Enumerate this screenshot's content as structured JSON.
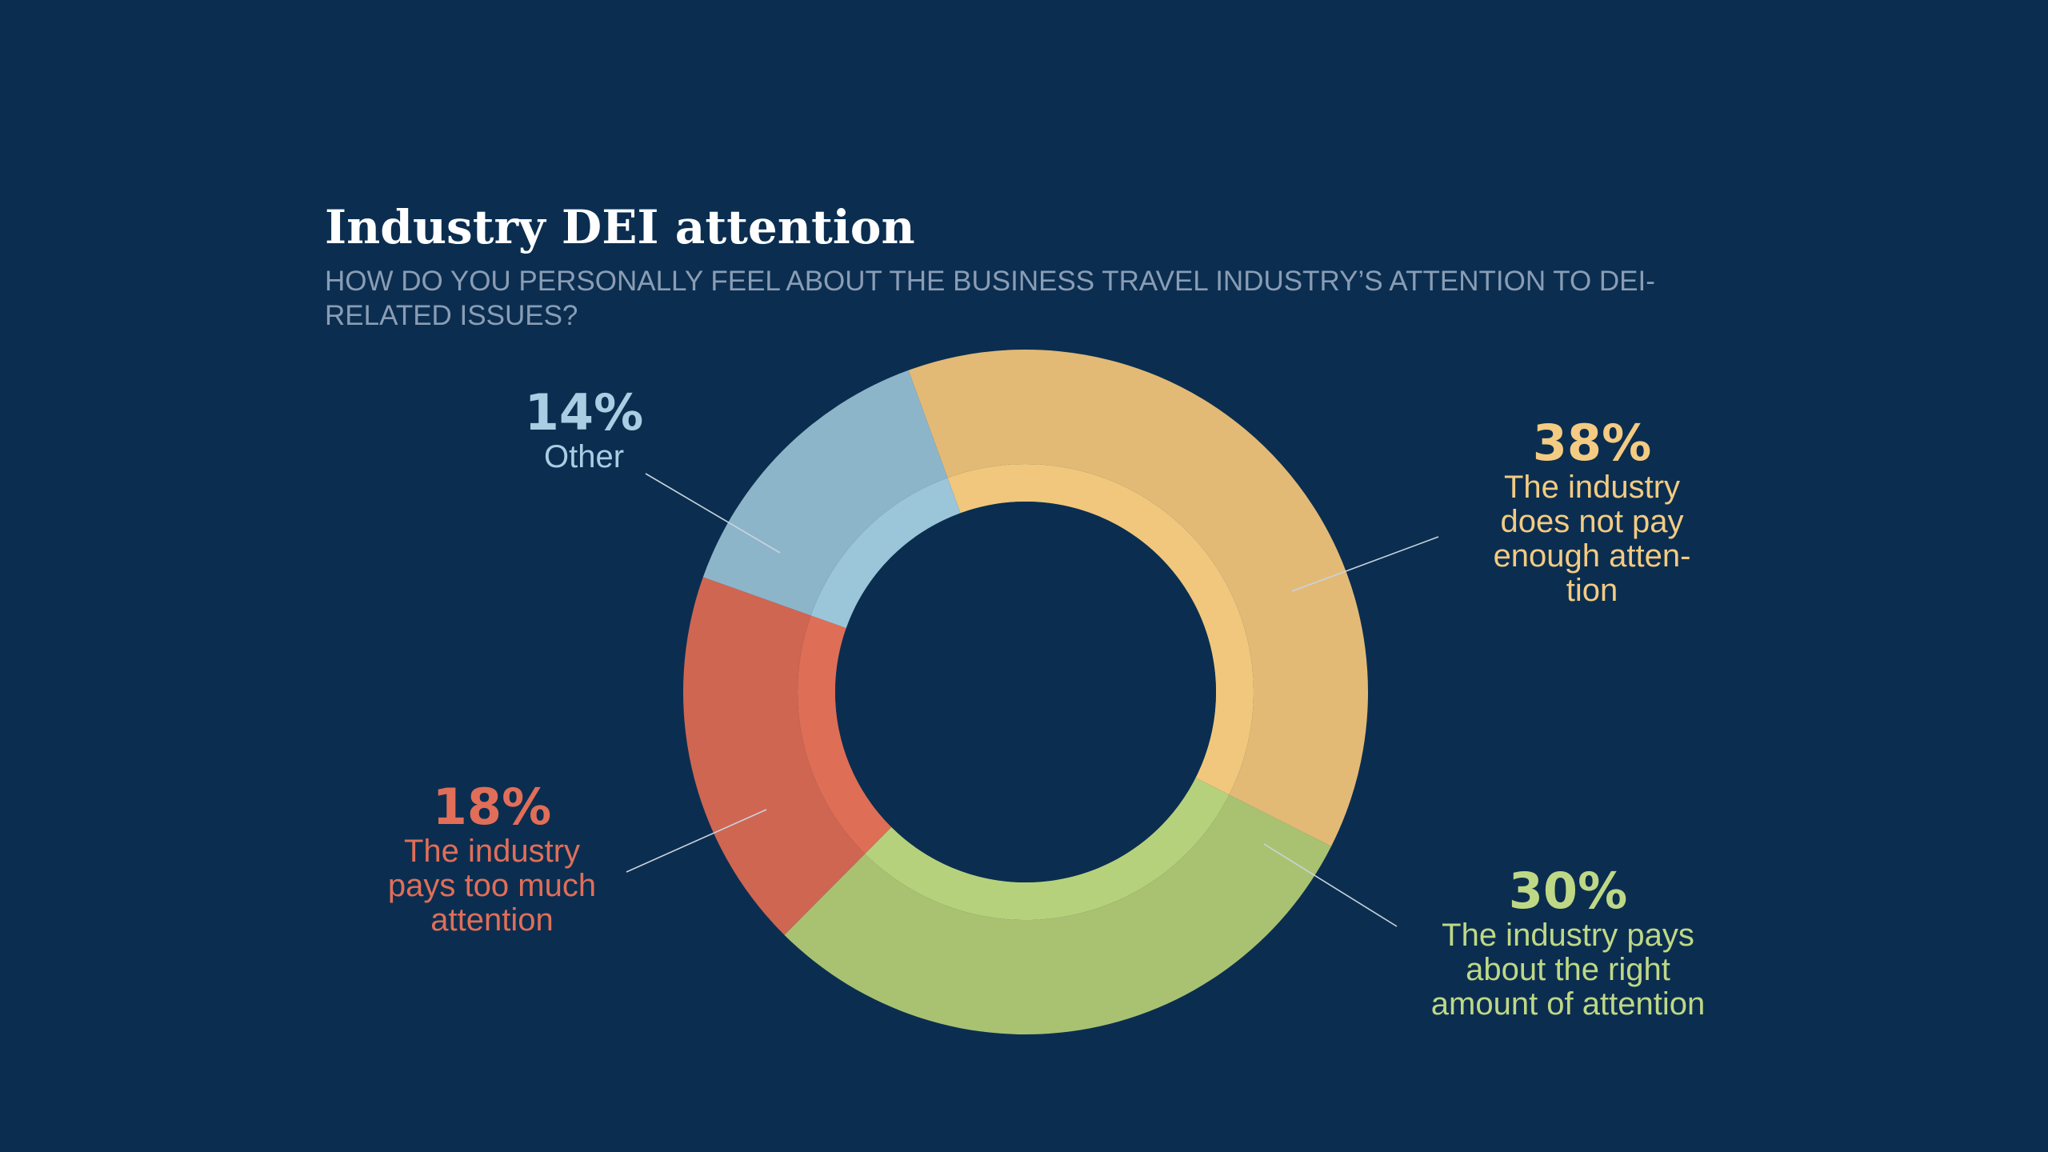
{
  "title": "Industry DEI attention",
  "subtitle": "HOW DO YOU PERSONALLY FEEL ABOUT THE BUSINESS TRAVEL INDUSTRY’S ATTENTION TO DEI-RELATED ISSUES?",
  "background_color": "#0b2e50",
  "chart_data": {
    "type": "pie",
    "donut": true,
    "start_angle_deg": -20,
    "direction": "clockwise",
    "slices": [
      {
        "label": "The industry does not pay enough atten-\ntion",
        "value": 38,
        "pct_label": "38%",
        "color": "#e2ba76",
        "inner_color": "#f0c77c"
      },
      {
        "label": "The industry pays about the right amount of attention",
        "value": 30,
        "pct_label": "30%",
        "color": "#a9c271",
        "inner_color": "#b6d17c"
      },
      {
        "label": "The industry pays too much attention",
        "value": 18,
        "pct_label": "18%",
        "color": "#cf6652",
        "inner_color": "#de6e56"
      },
      {
        "label": "Other",
        "value": 14,
        "pct_label": "14%",
        "color": "#8db5c9",
        "inner_color": "#9bc5d9"
      }
    ]
  },
  "labels": {
    "other": {
      "pct": "14%",
      "text": "Other",
      "color": "#a9cde3"
    },
    "not_enough": {
      "pct": "38%",
      "text": "The industry\ndoes not pay\nenough atten-\ntion",
      "color": "#f3cb82"
    },
    "right_amount": {
      "pct": "30%",
      "text": "The industry pays\nabout the right\namount of attention",
      "color": "#bfd886"
    },
    "too_much": {
      "pct": "18%",
      "text": "The industry\npays too much\nattention",
      "color": "#e16e58"
    }
  }
}
